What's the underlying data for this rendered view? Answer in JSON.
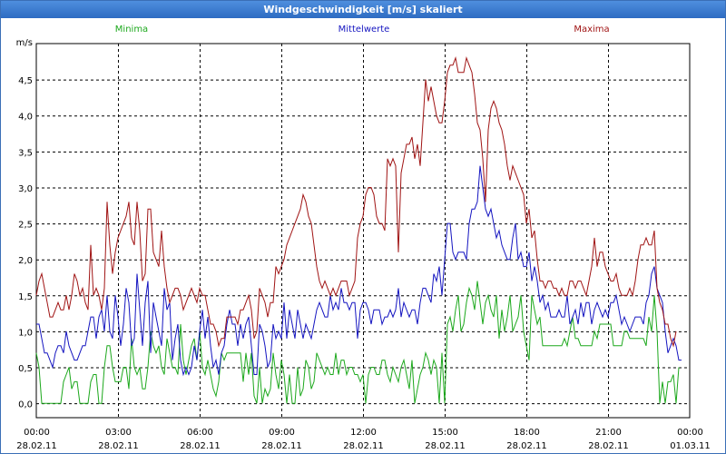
{
  "window": {
    "title": "Windgeschwindigkeit [m/s] skaliert"
  },
  "colors": {
    "min": "#1ca81c",
    "mean": "#1414c0",
    "max": "#a01414",
    "grid": "#000000"
  },
  "chart_data": {
    "type": "line",
    "title": "Windgeschwindigkeit [m/s] skaliert",
    "ylabel": "m/s",
    "ylim": [
      -0.2,
      5.0
    ],
    "xlim_hours": [
      0,
      24
    ],
    "yticks": [
      {
        "v": 0.0,
        "label": "0,0"
      },
      {
        "v": 0.5,
        "label": "0,5"
      },
      {
        "v": 1.0,
        "label": "1,0"
      },
      {
        "v": 1.5,
        "label": "1,5"
      },
      {
        "v": 2.0,
        "label": "2,0"
      },
      {
        "v": 2.5,
        "label": "2,5"
      },
      {
        "v": 3.0,
        "label": "3,0"
      },
      {
        "v": 3.5,
        "label": "3,5"
      },
      {
        "v": 4.0,
        "label": "4,0"
      },
      {
        "v": 4.5,
        "label": "4,5"
      }
    ],
    "xticks": [
      {
        "h": 0,
        "time": "00:00",
        "date": "28.02.11"
      },
      {
        "h": 3,
        "time": "03:00",
        "date": "28.02.11"
      },
      {
        "h": 6,
        "time": "06:00",
        "date": "28.02.11"
      },
      {
        "h": 9,
        "time": "09:00",
        "date": "28.02.11"
      },
      {
        "h": 12,
        "time": "12:00",
        "date": "28.02.11"
      },
      {
        "h": 15,
        "time": "15:00",
        "date": "28.02.11"
      },
      {
        "h": 18,
        "time": "18:00",
        "date": "28.02.11"
      },
      {
        "h": 21,
        "time": "21:00",
        "date": "28.02.11"
      },
      {
        "h": 24,
        "time": "00:00",
        "date": "01.03.11"
      }
    ],
    "grid": true,
    "x_step_hours": 0.1,
    "series": [
      {
        "name": "Minima",
        "key": "min",
        "legend_position": "left",
        "values": [
          0.7,
          0.5,
          0.0,
          0.0,
          0.0,
          0.0,
          0.0,
          0.0,
          0.0,
          0.0,
          0.3,
          0.4,
          0.5,
          0.2,
          0.3,
          0.3,
          0.0,
          0.0,
          0.0,
          0.0,
          0.3,
          0.4,
          0.4,
          0.0,
          0.0,
          0.5,
          0.8,
          0.8,
          0.5,
          0.3,
          0.3,
          0.3,
          0.5,
          0.5,
          0.2,
          0.9,
          0.5,
          0.4,
          0.5,
          0.2,
          0.2,
          0.5,
          1.0,
          0.8,
          0.7,
          0.8,
          0.5,
          0.4,
          0.9,
          0.7,
          0.5,
          0.5,
          0.4,
          1.1,
          0.6,
          0.4,
          0.6,
          0.8,
          0.9,
          0.6,
          1.0,
          0.5,
          0.4,
          0.6,
          0.4,
          0.2,
          0.1,
          0.3,
          0.7,
          0.6,
          0.7,
          0.7,
          0.7,
          0.7,
          0.7,
          0.7,
          0.3,
          0.7,
          0.4,
          0.7,
          0.1,
          0.0,
          0.5,
          0.0,
          0.2,
          0.1,
          0.2,
          0.7,
          0.4,
          0.2,
          0.6,
          0.4,
          0.0,
          0.4,
          0.0,
          0.0,
          0.5,
          0.1,
          0.2,
          0.6,
          0.5,
          0.2,
          0.3,
          0.7,
          0.6,
          0.5,
          0.4,
          0.5,
          0.4,
          0.4,
          0.7,
          0.4,
          0.6,
          0.6,
          0.4,
          0.5,
          0.5,
          0.4,
          0.4,
          0.3,
          0.4,
          0.0,
          0.4,
          0.5,
          0.5,
          0.4,
          0.4,
          0.6,
          0.6,
          0.4,
          0.3,
          0.5,
          0.4,
          0.3,
          0.5,
          0.6,
          0.4,
          0.2,
          0.6,
          0.0,
          0.2,
          0.4,
          0.5,
          0.7,
          0.6,
          0.4,
          0.6,
          0.5,
          0.0,
          0.7,
          0.0,
          1.1,
          1.2,
          1.0,
          1.3,
          1.5,
          1.0,
          1.1,
          1.4,
          1.6,
          1.5,
          1.3,
          1.7,
          1.4,
          1.1,
          1.4,
          1.5,
          1.3,
          1.2,
          1.5,
          0.9,
          1.3,
          1.0,
          1.2,
          1.5,
          1.0,
          1.1,
          1.2,
          1.5,
          1.0,
          0.8,
          0.6,
          1.5,
          1.3,
          1.1,
          1.2,
          0.8,
          0.8,
          0.8,
          0.8,
          0.8,
          0.8,
          0.8,
          0.8,
          0.9,
          0.8,
          1.0,
          1.2,
          0.9,
          0.9,
          0.8,
          0.8,
          0.8,
          0.8,
          0.8,
          1.0,
          0.9,
          1.1,
          1.1,
          1.1,
          1.1,
          1.1,
          0.8,
          0.8,
          0.8,
          0.8,
          1.0,
          1.0,
          0.9,
          0.9,
          0.9,
          0.9,
          0.9,
          0.9,
          0.8,
          1.2,
          1.0,
          1.5,
          1.0,
          0.0,
          0.3,
          0.0,
          0.3,
          0.3,
          0.4,
          0.0,
          0.5
        ]
      },
      {
        "name": "Mittelwerte",
        "key": "mean",
        "legend_position": "center",
        "values": [
          1.1,
          1.1,
          0.9,
          0.7,
          0.7,
          0.6,
          0.5,
          0.7,
          0.8,
          0.8,
          0.7,
          1.0,
          0.8,
          0.7,
          0.6,
          0.6,
          0.7,
          0.8,
          0.8,
          1.0,
          1.2,
          1.2,
          0.9,
          1.2,
          1.3,
          1.0,
          1.5,
          1.0,
          0.9,
          1.5,
          1.2,
          0.8,
          1.1,
          1.6,
          1.4,
          0.8,
          0.9,
          1.8,
          1.3,
          0.8,
          1.4,
          1.7,
          0.7,
          1.4,
          1.2,
          1.0,
          0.8,
          1.6,
          1.3,
          1.4,
          0.6,
          0.9,
          1.1,
          0.6,
          0.4,
          0.5,
          0.4,
          0.5,
          0.8,
          0.6,
          1.0,
          1.3,
          0.9,
          1.2,
          0.8,
          0.5,
          0.6,
          0.4,
          0.7,
          0.8,
          1.1,
          1.3,
          1.1,
          1.1,
          0.8,
          1.1,
          0.9,
          1.1,
          1.2,
          0.8,
          0.4,
          0.4,
          1.1,
          1.0,
          0.8,
          0.5,
          0.6,
          1.1,
          0.9,
          1.0,
          0.9,
          1.4,
          0.9,
          1.3,
          1.1,
          0.9,
          1.3,
          1.1,
          0.9,
          1.1,
          1.0,
          0.9,
          1.1,
          1.3,
          1.4,
          1.3,
          1.2,
          1.2,
          1.5,
          1.3,
          1.4,
          1.3,
          1.6,
          1.4,
          1.4,
          1.3,
          1.4,
          1.4,
          0.9,
          1.3,
          1.4,
          1.4,
          1.3,
          1.1,
          1.3,
          1.3,
          1.3,
          1.1,
          1.2,
          1.2,
          1.3,
          1.2,
          1.3,
          1.6,
          1.2,
          1.4,
          1.3,
          1.2,
          1.3,
          1.3,
          1.1,
          1.4,
          1.6,
          1.6,
          1.5,
          1.4,
          1.8,
          1.7,
          1.9,
          1.5,
          2.0,
          2.5,
          2.5,
          2.1,
          2.0,
          2.1,
          2.1,
          2.1,
          2.0,
          2.5,
          2.7,
          2.7,
          2.8,
          3.3,
          3.0,
          2.7,
          2.6,
          2.7,
          2.5,
          2.3,
          2.4,
          2.2,
          2.1,
          2.0,
          2.0,
          2.3,
          2.5,
          2.0,
          2.1,
          1.9,
          1.9,
          2.1,
          1.7,
          1.9,
          1.7,
          1.4,
          1.5,
          1.3,
          1.4,
          1.2,
          1.2,
          1.2,
          1.3,
          1.2,
          1.2,
          1.5,
          1.1,
          1.2,
          1.3,
          1.1,
          1.4,
          1.2,
          1.4,
          1.4,
          1.1,
          1.3,
          1.4,
          1.3,
          1.2,
          1.3,
          1.2,
          1.4,
          1.4,
          1.5,
          1.3,
          1.1,
          1.2,
          1.1,
          1.0,
          1.1,
          1.2,
          1.2,
          1.2,
          1.1,
          1.4,
          1.5,
          1.8,
          1.9,
          1.6,
          1.5,
          1.4,
          1.0,
          0.7,
          0.8,
          0.9,
          0.8,
          0.6,
          0.6
        ]
      },
      {
        "name": "Maxima",
        "key": "max",
        "legend_position": "right",
        "values": [
          1.5,
          1.7,
          1.8,
          1.6,
          1.4,
          1.2,
          1.2,
          1.3,
          1.4,
          1.3,
          1.3,
          1.5,
          1.3,
          1.5,
          1.8,
          1.7,
          1.5,
          1.6,
          1.4,
          1.3,
          2.2,
          1.5,
          1.6,
          1.5,
          1.3,
          1.6,
          2.8,
          2.2,
          1.8,
          2.1,
          2.3,
          2.4,
          2.5,
          2.6,
          2.8,
          2.3,
          2.2,
          2.8,
          2.4,
          1.7,
          1.8,
          2.7,
          2.7,
          2.1,
          2.0,
          1.9,
          2.4,
          1.9,
          1.6,
          1.4,
          1.5,
          1.6,
          1.6,
          1.5,
          1.3,
          1.4,
          1.5,
          1.6,
          1.5,
          1.4,
          1.6,
          1.5,
          1.5,
          1.3,
          1.1,
          1.1,
          1.0,
          0.8,
          0.9,
          0.9,
          1.2,
          1.2,
          1.2,
          1.2,
          1.1,
          1.3,
          1.3,
          1.4,
          1.5,
          1.3,
          0.9,
          1.0,
          1.6,
          1.5,
          1.4,
          1.2,
          1.4,
          1.4,
          1.9,
          1.8,
          1.9,
          2.0,
          2.2,
          2.3,
          2.4,
          2.5,
          2.6,
          2.7,
          2.9,
          2.8,
          2.6,
          2.5,
          2.2,
          1.9,
          1.7,
          1.6,
          1.7,
          1.6,
          1.5,
          1.6,
          1.5,
          1.6,
          1.7,
          1.7,
          1.7,
          1.5,
          1.6,
          1.7,
          2.3,
          2.5,
          2.6,
          2.9,
          3.0,
          3.0,
          2.9,
          2.6,
          2.5,
          2.5,
          2.4,
          3.4,
          3.3,
          3.4,
          3.3,
          2.1,
          3.2,
          3.4,
          3.6,
          3.6,
          3.7,
          3.4,
          3.6,
          3.3,
          3.9,
          4.5,
          4.2,
          4.4,
          4.2,
          4.0,
          3.9,
          3.9,
          4.2,
          4.6,
          4.7,
          4.7,
          4.8,
          4.6,
          4.6,
          4.6,
          4.8,
          4.7,
          4.6,
          4.3,
          3.9,
          3.8,
          3.4,
          2.8,
          3.8,
          4.1,
          4.2,
          4.1,
          3.9,
          3.8,
          3.6,
          3.3,
          3.1,
          3.3,
          3.2,
          3.1,
          3.0,
          2.9,
          2.5,
          2.7,
          2.3,
          2.4,
          2.0,
          1.7,
          1.7,
          1.6,
          1.7,
          1.7,
          1.6,
          1.6,
          1.5,
          1.6,
          1.5,
          1.5,
          1.7,
          1.7,
          1.6,
          1.7,
          1.7,
          1.6,
          1.5,
          1.7,
          1.9,
          2.3,
          1.9,
          2.1,
          2.1,
          1.9,
          1.8,
          1.7,
          1.7,
          1.8,
          1.6,
          1.5,
          1.5,
          1.5,
          1.6,
          1.5,
          1.7,
          2.0,
          2.2,
          2.2,
          2.3,
          2.2,
          2.2,
          2.4,
          1.6,
          1.4,
          1.3,
          1.1,
          1.1,
          0.9,
          0.8,
          1.0
        ]
      }
    ]
  }
}
